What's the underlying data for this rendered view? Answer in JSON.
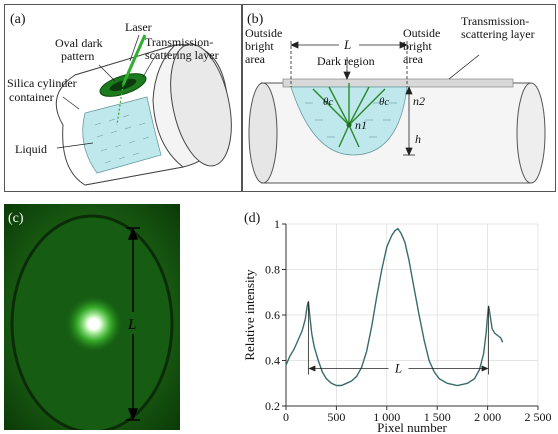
{
  "panel_a": {
    "tag": "(a)",
    "laser": "Laser",
    "oval_1": "Oval dark",
    "oval_2": "pattern",
    "trans_1": "Transmission-",
    "trans_2": "scattering layer",
    "silica_1": "Silica cylinder",
    "silica_2": "container",
    "liquid": "Liquid"
  },
  "panel_b": {
    "tag": "(b)",
    "out_left_1": "Outside",
    "out_left_2": "bright",
    "out_left_3": "area",
    "L": "L",
    "out_right_1": "Outside",
    "out_right_2": "bright",
    "out_right_3": "area",
    "trans_1": "Transmission-",
    "trans_2": "scattering layer",
    "dark_region": "Dark region",
    "theta_c_left": "θc",
    "theta_c_right": "θc",
    "n2": "n2",
    "n1": "n1",
    "h": "h"
  },
  "panel_c": {
    "tag": "(c)",
    "L": "L"
  },
  "panel_d": {
    "tag": "(d)",
    "L": "L"
  },
  "chart_data": {
    "type": "line",
    "title": "",
    "xlabel": "Pixel number",
    "ylabel": "Relative intensity",
    "xlim": [
      0,
      2500
    ],
    "ylim": [
      0.2,
      1.0
    ],
    "x_ticks": [
      0,
      500,
      1000,
      1500,
      2000,
      2500
    ],
    "x_tick_labels": [
      "0",
      "500",
      "1 000",
      "1 500",
      "2 000",
      "2 500"
    ],
    "y_ticks": [
      0.2,
      0.4,
      0.6,
      0.8,
      1.0
    ],
    "y_tick_labels": [
      "0.2",
      "0.4",
      "0.6",
      "0.8",
      "1"
    ],
    "grid": true,
    "series_color": "#3a6b6b",
    "points": [
      [
        0,
        0.38
      ],
      [
        40,
        0.42
      ],
      [
        80,
        0.45
      ],
      [
        120,
        0.49
      ],
      [
        160,
        0.53
      ],
      [
        190,
        0.58
      ],
      [
        210,
        0.64
      ],
      [
        222,
        0.66
      ],
      [
        235,
        0.6
      ],
      [
        255,
        0.52
      ],
      [
        280,
        0.46
      ],
      [
        320,
        0.4
      ],
      [
        360,
        0.35
      ],
      [
        400,
        0.32
      ],
      [
        450,
        0.3
      ],
      [
        500,
        0.29
      ],
      [
        550,
        0.29
      ],
      [
        600,
        0.3
      ],
      [
        650,
        0.31
      ],
      [
        700,
        0.33
      ],
      [
        750,
        0.37
      ],
      [
        800,
        0.44
      ],
      [
        850,
        0.55
      ],
      [
        900,
        0.68
      ],
      [
        950,
        0.8
      ],
      [
        1000,
        0.9
      ],
      [
        1050,
        0.95
      ],
      [
        1080,
        0.97
      ],
      [
        1110,
        0.98
      ],
      [
        1140,
        0.96
      ],
      [
        1180,
        0.92
      ],
      [
        1220,
        0.84
      ],
      [
        1270,
        0.72
      ],
      [
        1320,
        0.6
      ],
      [
        1370,
        0.49
      ],
      [
        1420,
        0.4
      ],
      [
        1470,
        0.35
      ],
      [
        1520,
        0.32
      ],
      [
        1600,
        0.3
      ],
      [
        1700,
        0.29
      ],
      [
        1800,
        0.3
      ],
      [
        1870,
        0.32
      ],
      [
        1920,
        0.36
      ],
      [
        1960,
        0.43
      ],
      [
        1985,
        0.52
      ],
      [
        2000,
        0.6
      ],
      [
        2010,
        0.64
      ],
      [
        2025,
        0.6
      ],
      [
        2045,
        0.54
      ],
      [
        2070,
        0.52
      ],
      [
        2100,
        0.51
      ],
      [
        2130,
        0.5
      ],
      [
        2150,
        0.48
      ]
    ],
    "annotation": {
      "label": "L",
      "x_start": 222,
      "x_end": 2010,
      "y": 0.365
    }
  },
  "colors": {
    "liquid": "#bfe8ec",
    "green_laser": "#2fae2f",
    "photo_bg": "#0b3b07",
    "photo_oval": "#1f7a18",
    "curve": "#3a6b6b"
  }
}
